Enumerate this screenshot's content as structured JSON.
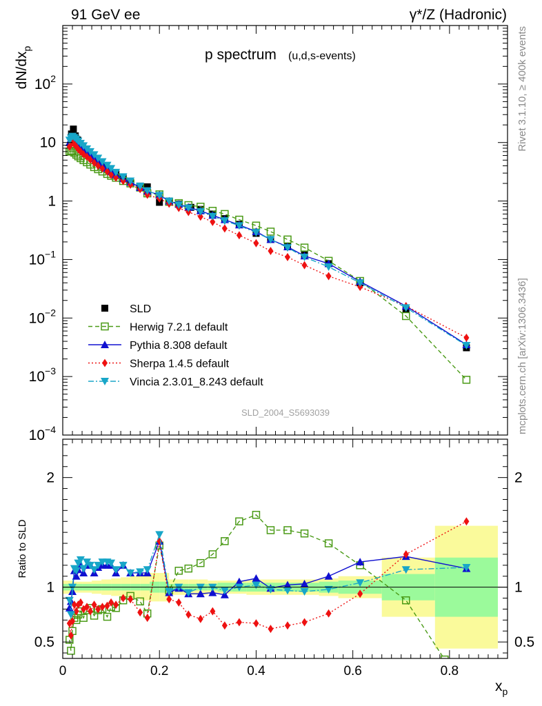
{
  "header": {
    "left": "91 GeV ee",
    "right": "γ*/Z (Hadronic)"
  },
  "side": {
    "rivet": "Rivet 3.1.10, ≥ 400k events",
    "mcplots": "mcplots.cern.ch [arXiv:1306.3436]"
  },
  "chart_data": [
    {
      "type": "scatter",
      "title": "p spectrum",
      "subtitle": "(u,d,s-events)",
      "ylabel": "dN/dx_p",
      "xlabel": "x_p",
      "yscale": "log",
      "ylim": [
        0.0001,
        1000
      ],
      "xlim": [
        0,
        0.92
      ],
      "ytick_labels": [
        "10^2",
        "10",
        "1",
        "10^-1",
        "10^-2",
        "10^-3",
        "10^-4"
      ],
      "legend_position": "lower-left",
      "watermark": "SLD_2004_S5693039",
      "series": [
        {
          "name": "SLD",
          "color": "#000000",
          "marker": "square-filled",
          "line": "none",
          "x": [
            0.018,
            0.022,
            0.026,
            0.031,
            0.036,
            0.041,
            0.047,
            0.055,
            0.065,
            0.075,
            0.085,
            0.095,
            0.11,
            0.125,
            0.14,
            0.16,
            0.175,
            0.2,
            0.22,
            0.24,
            0.265,
            0.285,
            0.31,
            0.335,
            0.365,
            0.4,
            0.43,
            0.465,
            0.5,
            0.55,
            0.615,
            0.71,
            0.835
          ],
          "y": [
            14,
            17,
            13,
            11,
            9.5,
            8,
            7,
            6,
            5.3,
            4.6,
            4,
            3.4,
            2.9,
            2.5,
            2.1,
            1.8,
            1.75,
            0.95,
            1.0,
            0.88,
            0.78,
            0.72,
            0.6,
            0.5,
            0.4,
            0.28,
            0.22,
            0.17,
            0.12,
            0.085,
            0.04,
            0.014,
            0.0031
          ]
        },
        {
          "name": "Herwig 7.2.1 default",
          "color": "#4a9a16",
          "marker": "square-open",
          "line": "dashed",
          "x": [
            0.014,
            0.017,
            0.02,
            0.024,
            0.028,
            0.032,
            0.037,
            0.043,
            0.05,
            0.057,
            0.065,
            0.073,
            0.082,
            0.092,
            0.1,
            0.11,
            0.125,
            0.14,
            0.16,
            0.175,
            0.2,
            0.22,
            0.24,
            0.26,
            0.285,
            0.31,
            0.335,
            0.365,
            0.4,
            0.43,
            0.465,
            0.5,
            0.55,
            0.615,
            0.71,
            0.835
          ],
          "y": [
            7,
            7.2,
            7.1,
            6.7,
            6.2,
            5.8,
            5.4,
            5.0,
            4.6,
            4.2,
            3.8,
            3.5,
            3.2,
            2.9,
            2.7,
            2.5,
            2.2,
            2.0,
            1.7,
            1.35,
            1.3,
            0.97,
            0.92,
            0.85,
            0.8,
            0.68,
            0.6,
            0.48,
            0.38,
            0.3,
            0.22,
            0.16,
            0.095,
            0.043,
            0.0108,
            0.00088
          ]
        },
        {
          "name": "Pythia 8.308 default",
          "color": "#1010d0",
          "marker": "triangle-up",
          "line": "solid",
          "x": [
            0.014,
            0.017,
            0.02,
            0.024,
            0.028,
            0.032,
            0.037,
            0.043,
            0.05,
            0.057,
            0.065,
            0.073,
            0.082,
            0.092,
            0.1,
            0.11,
            0.125,
            0.14,
            0.16,
            0.175,
            0.2,
            0.22,
            0.24,
            0.26,
            0.285,
            0.31,
            0.335,
            0.365,
            0.4,
            0.43,
            0.465,
            0.5,
            0.55,
            0.615,
            0.71,
            0.835
          ],
          "y": [
            10,
            11.5,
            11.8,
            11.2,
            10.5,
            9.5,
            8.5,
            7.6,
            6.8,
            6.0,
            5.3,
            4.7,
            4.1,
            3.6,
            3.2,
            2.8,
            2.4,
            2.1,
            1.7,
            1.48,
            1.27,
            1.0,
            0.88,
            0.78,
            0.68,
            0.57,
            0.48,
            0.39,
            0.3,
            0.22,
            0.165,
            0.115,
            0.085,
            0.042,
            0.016,
            0.0035
          ]
        },
        {
          "name": "Sherpa 1.4.5 default",
          "color": "#ee1111",
          "marker": "diamond",
          "line": "dotted",
          "x": [
            0.014,
            0.017,
            0.02,
            0.024,
            0.028,
            0.032,
            0.037,
            0.043,
            0.05,
            0.057,
            0.065,
            0.073,
            0.082,
            0.092,
            0.1,
            0.11,
            0.125,
            0.14,
            0.16,
            0.175,
            0.2,
            0.22,
            0.24,
            0.26,
            0.285,
            0.31,
            0.335,
            0.365,
            0.4,
            0.43,
            0.465,
            0.5,
            0.55,
            0.615,
            0.71,
            0.835
          ],
          "y": [
            8.5,
            9.5,
            10,
            9.3,
            8.5,
            7.7,
            7.0,
            6.3,
            5.7,
            5.1,
            4.5,
            4.0,
            3.6,
            3.2,
            2.8,
            2.5,
            2.2,
            1.9,
            1.6,
            1.28,
            1.1,
            0.9,
            0.76,
            0.65,
            0.54,
            0.44,
            0.34,
            0.26,
            0.19,
            0.14,
            0.11,
            0.08,
            0.052,
            0.034,
            0.016,
            0.0046
          ]
        },
        {
          "name": "Vincia 2.3.01_8.243 default",
          "color": "#18a6c8",
          "marker": "triangle-down",
          "line": "dashdot",
          "x": [
            0.014,
            0.017,
            0.02,
            0.024,
            0.028,
            0.032,
            0.037,
            0.043,
            0.05,
            0.057,
            0.065,
            0.073,
            0.082,
            0.092,
            0.1,
            0.11,
            0.125,
            0.14,
            0.16,
            0.175,
            0.2,
            0.22,
            0.24,
            0.26,
            0.285,
            0.31,
            0.335,
            0.365,
            0.4,
            0.43,
            0.465,
            0.5,
            0.55,
            0.615,
            0.71,
            0.835
          ],
          "y": [
            11,
            12,
            12.8,
            12.2,
            11.5,
            10.6,
            9.7,
            8.8,
            7.8,
            7.0,
            6.2,
            5.4,
            4.7,
            4.1,
            3.6,
            3.1,
            2.6,
            2.2,
            1.8,
            1.5,
            1.25,
            1.0,
            0.86,
            0.76,
            0.66,
            0.55,
            0.46,
            0.38,
            0.29,
            0.22,
            0.16,
            0.11,
            0.075,
            0.04,
            0.015,
            0.0034
          ]
        }
      ]
    },
    {
      "type": "line",
      "ylabel": "Ratio to SLD",
      "xlabel": "x_p",
      "ylim": [
        0.35,
        2.35
      ],
      "xlim": [
        0,
        0.92
      ],
      "ytick_labels": [
        "2",
        "1",
        "0.5"
      ],
      "xtick_labels": [
        "0",
        "0.2",
        "0.4",
        "0.6",
        "0.8"
      ],
      "uncertainty_bands": {
        "edges": [
          0.0,
          0.02,
          0.04,
          0.06,
          0.08,
          0.1,
          0.12,
          0.14,
          0.16,
          0.18,
          0.2,
          0.22,
          0.24,
          0.26,
          0.28,
          0.3,
          0.32,
          0.35,
          0.38,
          0.41,
          0.44,
          0.47,
          0.5,
          0.53,
          0.57,
          0.66,
          0.77,
          0.9
        ],
        "inner_half_width": [
          0.03,
          0.03,
          0.03,
          0.03,
          0.03,
          0.03,
          0.03,
          0.03,
          0.03,
          0.05,
          0.05,
          0.03,
          0.03,
          0.03,
          0.03,
          0.03,
          0.04,
          0.04,
          0.04,
          0.04,
          0.04,
          0.04,
          0.04,
          0.05,
          0.06,
          0.12,
          0.27
        ],
        "outer_half_width": [
          0.06,
          0.05,
          0.05,
          0.06,
          0.07,
          0.08,
          0.09,
          0.1,
          0.12,
          0.13,
          0.13,
          0.07,
          0.07,
          0.07,
          0.07,
          0.06,
          0.06,
          0.06,
          0.07,
          0.07,
          0.07,
          0.07,
          0.07,
          0.08,
          0.1,
          0.27,
          0.56
        ],
        "inner_color": "#9bfa9b",
        "outer_color": "#fafa9b"
      },
      "series": [
        {
          "name": "Herwig 7.2.1 default",
          "color": "#4a9a16",
          "marker": "square-open",
          "line": "dashed",
          "x": [
            0.014,
            0.017,
            0.02,
            0.024,
            0.028,
            0.032,
            0.037,
            0.043,
            0.05,
            0.057,
            0.065,
            0.073,
            0.082,
            0.092,
            0.1,
            0.11,
            0.125,
            0.14,
            0.16,
            0.175,
            0.2,
            0.22,
            0.24,
            0.26,
            0.285,
            0.31,
            0.335,
            0.365,
            0.4,
            0.43,
            0.465,
            0.5,
            0.55,
            0.615,
            0.71,
            0.79
          ],
          "y": [
            0.52,
            0.42,
            0.6,
            0.72,
            0.7,
            0.75,
            0.78,
            0.72,
            0.79,
            0.81,
            0.74,
            0.79,
            0.8,
            0.73,
            0.82,
            0.81,
            0.88,
            0.92,
            0.87,
            0.76,
            1.38,
            0.97,
            1.15,
            1.17,
            1.22,
            1.3,
            1.42,
            1.6,
            1.66,
            1.52,
            1.52,
            1.49,
            1.4,
            1.2,
            0.88,
            0.34
          ]
        },
        {
          "name": "Pythia 8.308 default",
          "color": "#1010d0",
          "marker": "triangle-up",
          "line": "solid",
          "x": [
            0.014,
            0.017,
            0.02,
            0.024,
            0.028,
            0.032,
            0.037,
            0.043,
            0.05,
            0.057,
            0.065,
            0.073,
            0.082,
            0.092,
            0.1,
            0.11,
            0.125,
            0.14,
            0.16,
            0.175,
            0.2,
            0.22,
            0.24,
            0.26,
            0.285,
            0.31,
            0.335,
            0.365,
            0.4,
            0.43,
            0.465,
            0.5,
            0.55,
            0.615,
            0.71,
            0.835
          ],
          "y": [
            0.81,
            0.87,
            0.96,
            1.15,
            1.1,
            1.16,
            1.2,
            1.13,
            1.2,
            1.2,
            1.13,
            1.18,
            1.2,
            1.2,
            1.2,
            1.13,
            1.2,
            1.13,
            1.13,
            1.13,
            1.42,
            0.95,
            0.99,
            0.94,
            0.94,
            0.95,
            0.93,
            1.05,
            1.08,
            0.99,
            1.02,
            1.03,
            1.1,
            1.23,
            1.28,
            1.17
          ]
        },
        {
          "name": "Sherpa 1.4.5 default",
          "color": "#ee1111",
          "marker": "diamond",
          "line": "dotted",
          "x": [
            0.014,
            0.017,
            0.02,
            0.024,
            0.028,
            0.032,
            0.037,
            0.043,
            0.05,
            0.057,
            0.065,
            0.073,
            0.082,
            0.092,
            0.1,
            0.11,
            0.125,
            0.14,
            0.16,
            0.175,
            0.2,
            0.22,
            0.24,
            0.26,
            0.285,
            0.31,
            0.335,
            0.365,
            0.4,
            0.43,
            0.465,
            0.5,
            0.55,
            0.615,
            0.71,
            0.835
          ],
          "y": [
            0.67,
            0.56,
            0.69,
            0.84,
            0.78,
            0.84,
            0.86,
            0.8,
            0.82,
            0.78,
            0.84,
            0.8,
            0.82,
            0.83,
            0.86,
            0.84,
            0.9,
            0.89,
            0.77,
            0.72,
            1.42,
            0.89,
            0.86,
            0.75,
            0.71,
            0.78,
            0.65,
            0.68,
            0.67,
            0.62,
            0.65,
            0.68,
            0.76,
            0.94,
            1.3,
            1.6
          ]
        },
        {
          "name": "Vincia 2.3.01_8.243 default",
          "color": "#18a6c8",
          "marker": "triangle-down",
          "line": "dashdot",
          "x": [
            0.014,
            0.017,
            0.02,
            0.024,
            0.028,
            0.032,
            0.037,
            0.043,
            0.05,
            0.057,
            0.065,
            0.073,
            0.082,
            0.092,
            0.1,
            0.11,
            0.125,
            0.14,
            0.16,
            0.175,
            0.2,
            0.22,
            0.24,
            0.26,
            0.285,
            0.31,
            0.335,
            0.365,
            0.4,
            0.43,
            0.465,
            0.5,
            0.55,
            0.615,
            0.71,
            0.835
          ],
          "y": [
            0.88,
            0.75,
            1.0,
            1.17,
            1.15,
            1.22,
            1.25,
            1.17,
            1.23,
            1.2,
            1.16,
            1.2,
            1.23,
            1.23,
            1.22,
            1.16,
            1.2,
            1.13,
            1.14,
            1.16,
            1.48,
            0.96,
            1.0,
            0.95,
            1.0,
            1.0,
            0.97,
            1.0,
            1.02,
            0.98,
            0.97,
            0.96,
            0.98,
            1.04,
            1.16,
            1.18
          ]
        }
      ]
    }
  ]
}
